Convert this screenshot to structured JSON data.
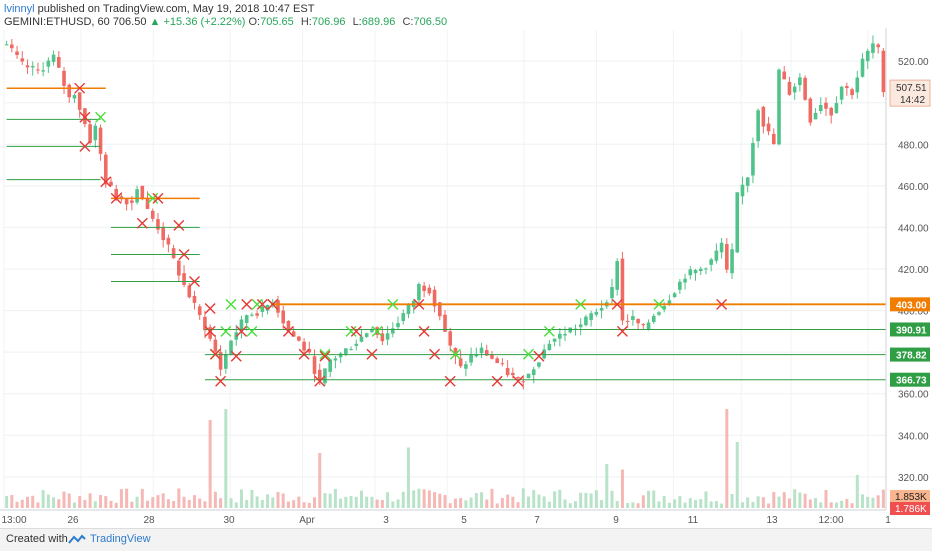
{
  "header": {
    "author": "lvinnyl",
    "published": "published on TradingView.com, May 19, 2018 10:47 EST",
    "symbol": "GEMINI:ETHUSD, 60",
    "last": "706.50",
    "change": "+15.36 (+2.22%)",
    "o_label": "O:",
    "o": "705.65",
    "h_label": "H:",
    "h": "706.96",
    "l_label": "L:",
    "l": "689.96",
    "c_label": "C:",
    "c": "706.50"
  },
  "footer": {
    "created_with": "Created with",
    "brand": "TradingView"
  },
  "colors": {
    "up": "#26a65b",
    "down": "#e0433a",
    "orange": "#f07d00",
    "green_line": "#2f9e44",
    "red_x": "#e53935",
    "green_x": "#4ade3a"
  },
  "chart_data": {
    "type": "candlestick",
    "x_ticks": [
      "13:00",
      "26",
      "28",
      "30",
      "Apr",
      "3",
      "5",
      "7",
      "9",
      "11",
      "13",
      "12:00",
      "1"
    ],
    "y_ticks": [
      320,
      340,
      360,
      380,
      400,
      420,
      440,
      460,
      480,
      500,
      520
    ],
    "y_range": [
      305,
      535
    ],
    "price_path": [
      [
        0,
        528
      ],
      [
        3,
        518
      ],
      [
        6,
        515
      ],
      [
        9,
        522
      ],
      [
        12,
        502
      ],
      [
        13,
        505
      ],
      [
        16,
        482
      ],
      [
        17,
        488
      ],
      [
        19,
        462
      ],
      [
        21,
        455
      ],
      [
        24,
        452
      ],
      [
        25,
        460
      ],
      [
        27,
        448
      ],
      [
        29,
        440
      ],
      [
        31,
        430
      ],
      [
        34,
        412
      ],
      [
        36,
        402
      ],
      [
        38,
        392
      ],
      [
        40,
        380
      ],
      [
        41,
        372
      ],
      [
        43,
        386
      ],
      [
        46,
        398
      ],
      [
        49,
        400
      ],
      [
        51,
        405
      ],
      [
        54,
        390
      ],
      [
        56,
        385
      ],
      [
        58,
        378
      ],
      [
        60,
        365
      ],
      [
        62,
        376
      ],
      [
        64,
        379
      ],
      [
        67,
        385
      ],
      [
        70,
        392
      ],
      [
        72,
        386
      ],
      [
        75,
        395
      ],
      [
        78,
        405
      ],
      [
        79,
        412
      ],
      [
        81,
        410
      ],
      [
        83,
        398
      ],
      [
        85,
        382
      ],
      [
        87,
        372
      ],
      [
        89,
        378
      ],
      [
        91,
        381
      ],
      [
        93,
        377
      ],
      [
        96,
        370
      ],
      [
        98,
        366
      ],
      [
        100,
        369
      ],
      [
        102,
        377
      ],
      [
        104,
        385
      ],
      [
        106,
        388
      ],
      [
        108,
        391
      ],
      [
        110,
        393
      ],
      [
        112,
        398
      ],
      [
        114,
        402
      ],
      [
        116,
        410
      ],
      [
        117,
        425
      ],
      [
        118,
        395
      ],
      [
        120,
        396
      ],
      [
        122,
        391
      ],
      [
        124,
        398
      ],
      [
        126,
        403
      ],
      [
        128,
        410
      ],
      [
        130,
        417
      ],
      [
        133,
        420
      ],
      [
        135,
        424
      ],
      [
        137,
        432
      ],
      [
        138,
        418
      ],
      [
        139,
        428
      ],
      [
        140,
        455
      ],
      [
        142,
        465
      ],
      [
        144,
        498
      ],
      [
        145,
        490
      ],
      [
        147,
        480
      ],
      [
        148,
        515
      ],
      [
        150,
        505
      ],
      [
        152,
        512
      ],
      [
        154,
        492
      ],
      [
        156,
        500
      ],
      [
        158,
        495
      ],
      [
        160,
        508
      ],
      [
        162,
        505
      ],
      [
        164,
        520
      ],
      [
        166,
        528
      ],
      [
        167,
        525
      ],
      [
        168,
        507
      ]
    ],
    "level_lines": [
      {
        "price": 403.0,
        "label": "403.00",
        "color": "orange",
        "x_start": 51
      },
      {
        "price": 390.91,
        "label": "390.91",
        "color": "green",
        "x_start": 38
      },
      {
        "price": 378.82,
        "label": "378.82",
        "color": "green",
        "x_start": 38
      },
      {
        "price": 366.73,
        "label": "366.73",
        "color": "green",
        "x_start": 38
      }
    ],
    "segments": [
      {
        "price": 507,
        "x1": 0,
        "x2": 19,
        "color": "orange"
      },
      {
        "price": 454,
        "x1": 20,
        "x2": 37,
        "color": "orange"
      },
      {
        "price": 492,
        "x1": 0,
        "x2": 18,
        "color": "green"
      },
      {
        "price": 479,
        "x1": 0,
        "x2": 18,
        "color": "green"
      },
      {
        "price": 463,
        "x1": 0,
        "x2": 18,
        "color": "green"
      },
      {
        "price": 440,
        "x1": 20,
        "x2": 37,
        "color": "green"
      },
      {
        "price": 427,
        "x1": 20,
        "x2": 37,
        "color": "green"
      },
      {
        "price": 414,
        "x1": 20,
        "x2": 37,
        "color": "green"
      }
    ],
    "price_tags": [
      {
        "price": 507.51,
        "label": "507.51",
        "sub": "14:42"
      }
    ],
    "volume_tags": [
      {
        "label": "1.853K"
      },
      {
        "label": "1.786K"
      }
    ],
    "red_marks": [
      [
        14,
        507
      ],
      [
        15,
        493
      ],
      [
        15,
        479
      ],
      [
        19,
        462
      ],
      [
        21,
        454
      ],
      [
        26,
        442
      ],
      [
        29,
        454
      ],
      [
        33,
        441
      ],
      [
        34,
        427
      ],
      [
        36,
        414
      ],
      [
        39,
        401
      ],
      [
        39,
        390
      ],
      [
        40,
        379
      ],
      [
        41,
        366
      ],
      [
        44,
        378
      ],
      [
        45,
        390
      ],
      [
        46,
        403
      ],
      [
        49,
        403
      ],
      [
        51,
        403
      ],
      [
        54,
        390
      ],
      [
        57,
        379
      ],
      [
        60,
        366
      ],
      [
        61,
        378
      ],
      [
        67,
        390
      ],
      [
        70,
        379
      ],
      [
        79,
        403
      ],
      [
        80,
        390
      ],
      [
        82,
        379
      ],
      [
        85,
        366
      ],
      [
        94,
        366
      ],
      [
        98,
        366
      ],
      [
        102,
        378
      ],
      [
        117,
        403
      ],
      [
        118,
        390
      ],
      [
        137,
        403
      ]
    ],
    "green_marks": [
      [
        18,
        493
      ],
      [
        28,
        454
      ],
      [
        40,
        379
      ],
      [
        42,
        390
      ],
      [
        43,
        403
      ],
      [
        47,
        390
      ],
      [
        48,
        403
      ],
      [
        51,
        403
      ],
      [
        61,
        379
      ],
      [
        66,
        390
      ],
      [
        71,
        390
      ],
      [
        74,
        403
      ],
      [
        86,
        379
      ],
      [
        100,
        379
      ],
      [
        104,
        390
      ],
      [
        110,
        403
      ],
      [
        125,
        403
      ]
    ],
    "volume_spikes": [
      [
        39,
        0.8
      ],
      [
        42,
        0.9
      ],
      [
        60,
        0.5
      ],
      [
        77,
        0.55
      ],
      [
        115,
        0.4
      ],
      [
        118,
        0.35
      ],
      [
        138,
        0.9
      ],
      [
        140,
        0.6
      ],
      [
        163,
        0.3
      ]
    ]
  }
}
